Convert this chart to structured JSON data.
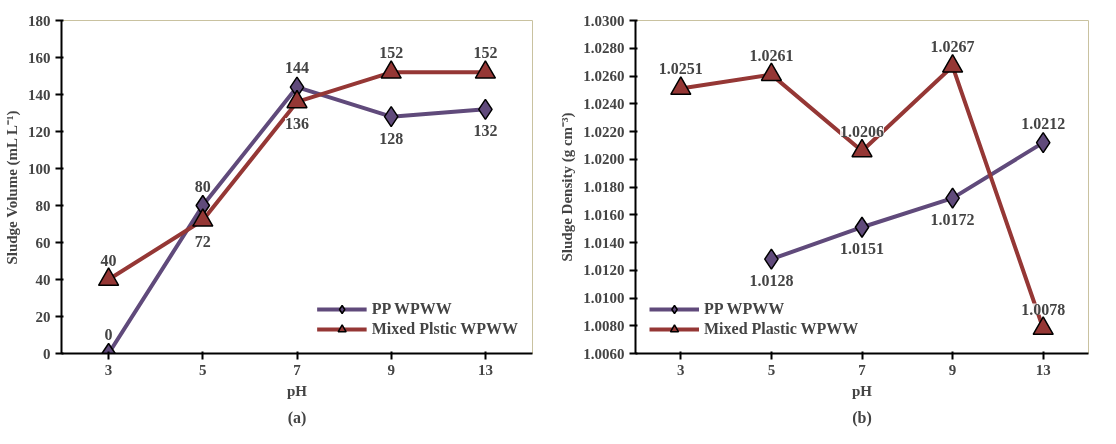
{
  "chart_data": [
    {
      "type": "line",
      "categories": [
        "3",
        "5",
        "7",
        "9",
        "13"
      ],
      "xlabel": "pH",
      "ylabel": "Sludge Volume (mL L⁻¹)",
      "ylim": [
        0,
        180
      ],
      "yticks": [
        0,
        20,
        40,
        60,
        80,
        100,
        120,
        140,
        160,
        180
      ],
      "series": [
        {
          "name": "PP WPWW",
          "color": "#604a7b",
          "marker": "diamond",
          "values": [
            0,
            80,
            144,
            128,
            132
          ]
        },
        {
          "name": "Mixed Plstic WPWW",
          "color": "#953735",
          "marker": "triangle",
          "values": [
            40,
            72,
            136,
            152,
            152
          ]
        }
      ],
      "data_labels": true,
      "grid": false,
      "legend": "bottom right",
      "annotations": [
        "(a)"
      ]
    },
    {
      "type": "line",
      "categories": [
        "3",
        "5",
        "7",
        "9",
        "13"
      ],
      "xlabel": "pH",
      "ylabel": "Sludge Density (g cm⁻³)",
      "ylim": [
        1.006,
        1.03
      ],
      "yticks": [
        {
          "value": 1.006,
          "label": "1.0060"
        },
        {
          "value": 1.008,
          "label": "1.0080"
        },
        {
          "value": 1.01,
          "label": "1.0100"
        },
        {
          "value": 1.012,
          "label": "1.0120"
        },
        {
          "value": 1.014,
          "label": "1.0140"
        },
        {
          "value": 1.016,
          "label": "1.0160"
        },
        {
          "value": 1.018,
          "label": "1.0180"
        },
        {
          "value": 1.02,
          "label": "1.0200"
        },
        {
          "value": 1.022,
          "label": "1.0220"
        },
        {
          "value": 1.024,
          "label": "1.0240"
        },
        {
          "value": 1.026,
          "label": "1.0260"
        },
        {
          "value": 1.028,
          "label": "1.0280"
        },
        {
          "value": 1.03,
          "label": "1.0300"
        }
      ],
      "series": [
        {
          "name": "PP WPWW",
          "color": "#604a7b",
          "marker": "diamond",
          "values": [
            null,
            1.0128,
            1.0151,
            1.0172,
            1.0212
          ]
        },
        {
          "name": "Mixed Plastic WPWW",
          "color": "#953735",
          "marker": "triangle",
          "values": [
            1.0251,
            1.0261,
            1.0206,
            1.0267,
            1.0078
          ]
        }
      ],
      "data_labels": true,
      "grid": false,
      "legend": "bottom left",
      "annotations": [
        "(b)"
      ]
    }
  ]
}
